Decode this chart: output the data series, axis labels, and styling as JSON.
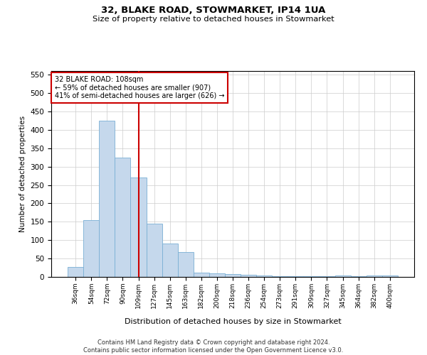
{
  "title1": "32, BLAKE ROAD, STOWMARKET, IP14 1UA",
  "title2": "Size of property relative to detached houses in Stowmarket",
  "xlabel": "Distribution of detached houses by size in Stowmarket",
  "ylabel": "Number of detached properties",
  "categories": [
    "36sqm",
    "54sqm",
    "72sqm",
    "90sqm",
    "109sqm",
    "127sqm",
    "145sqm",
    "163sqm",
    "182sqm",
    "200sqm",
    "218sqm",
    "236sqm",
    "254sqm",
    "273sqm",
    "291sqm",
    "309sqm",
    "327sqm",
    "345sqm",
    "364sqm",
    "382sqm",
    "400sqm"
  ],
  "values": [
    27,
    155,
    425,
    325,
    270,
    145,
    90,
    68,
    12,
    10,
    8,
    5,
    3,
    2,
    1,
    1,
    1,
    3,
    1,
    3,
    3
  ],
  "bar_color": "#c5d8ec",
  "bar_edge_color": "#7aafd4",
  "annotation_text_line1": "32 BLAKE ROAD: 108sqm",
  "annotation_text_line2": "← 59% of detached houses are smaller (907)",
  "annotation_text_line3": "41% of semi-detached houses are larger (626) →",
  "annotation_box_color": "#ffffff",
  "annotation_box_edge": "#cc0000",
  "vline_color": "#cc0000",
  "vline_x": 4,
  "ylim": [
    0,
    560
  ],
  "yticks": [
    0,
    50,
    100,
    150,
    200,
    250,
    300,
    350,
    400,
    450,
    500,
    550
  ],
  "footnote": "Contains HM Land Registry data © Crown copyright and database right 2024.\nContains public sector information licensed under the Open Government Licence v3.0.",
  "bg_color": "#ffffff",
  "grid_color": "#cccccc"
}
